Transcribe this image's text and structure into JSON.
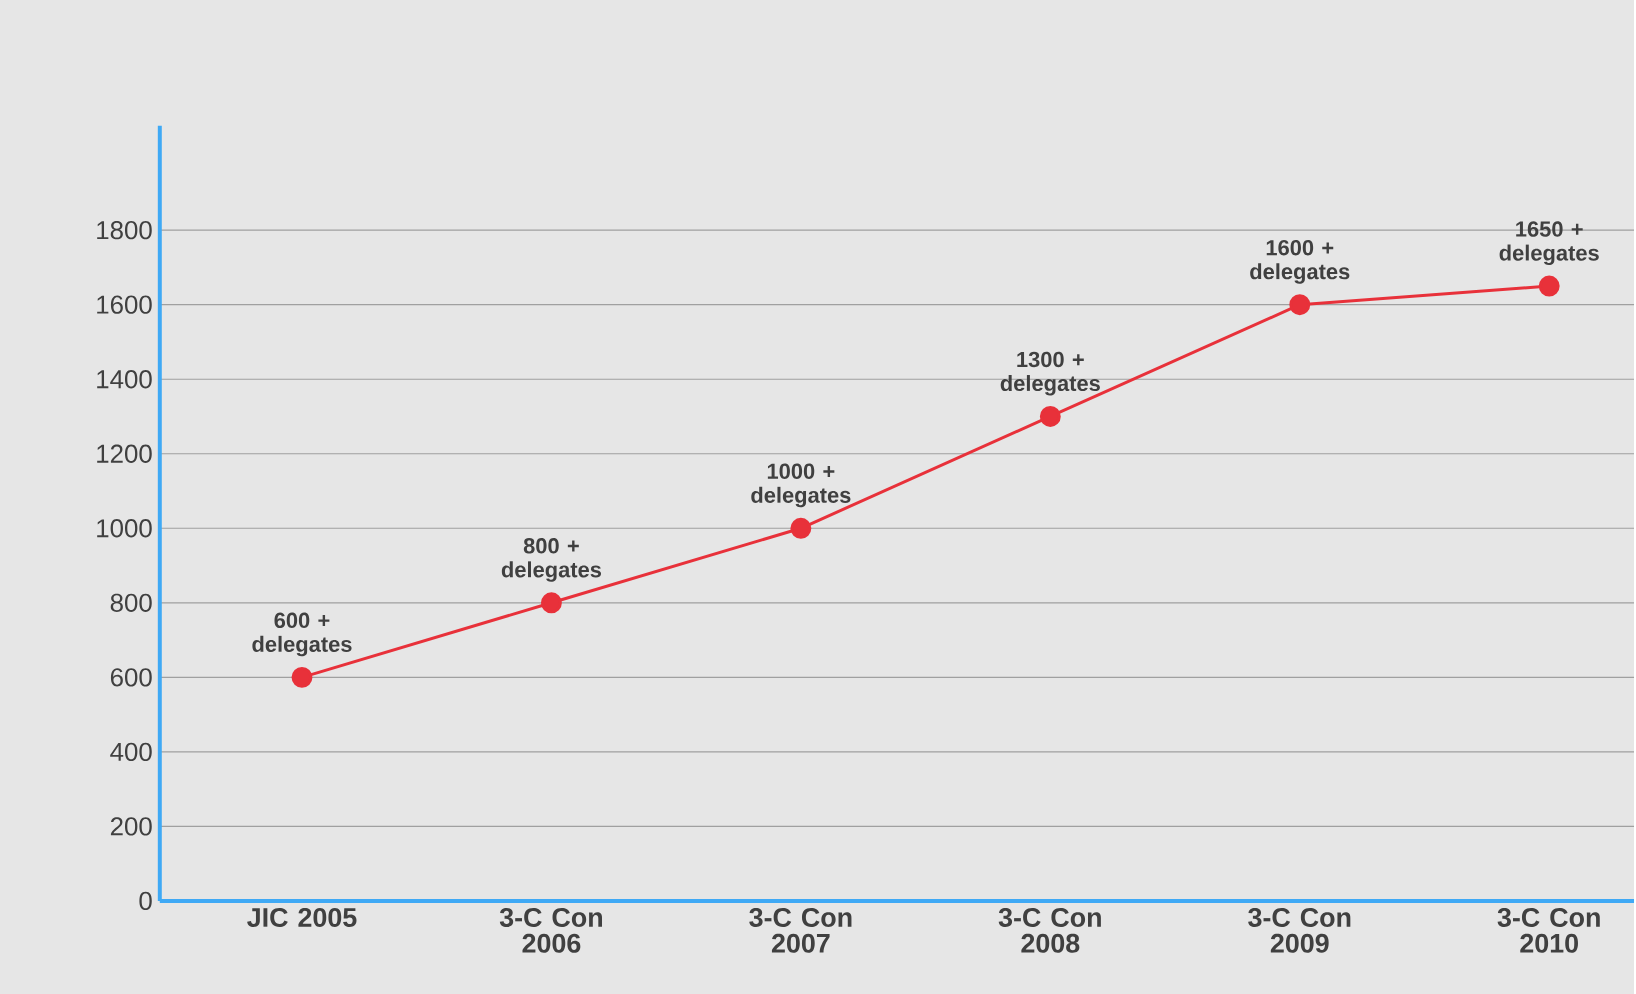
{
  "chart_data": {
    "type": "line",
    "categories": [
      "JIC 2005",
      "3-C Con 2006",
      "3-C Con 2007",
      "3-C Con 2008",
      "3-C Con 2009",
      "3-C Con 2010"
    ],
    "series": [
      {
        "color": "#e8313a",
        "values": [
          600,
          800,
          1000,
          1300,
          1600,
          1650
        ],
        "value_labels": [
          "600 + delegates",
          "800 + delegates",
          "1000 + delegates",
          "1300 + delegates",
          "1600 + delegates",
          "1650 + delegates"
        ]
      }
    ],
    "ylim": [
      0,
      2080
    ],
    "yticks": [
      0,
      200,
      400,
      600,
      800,
      1000,
      1200,
      1400,
      1600,
      1800
    ],
    "grid": "y",
    "marker": "circle",
    "line_style": "solid"
  }
}
